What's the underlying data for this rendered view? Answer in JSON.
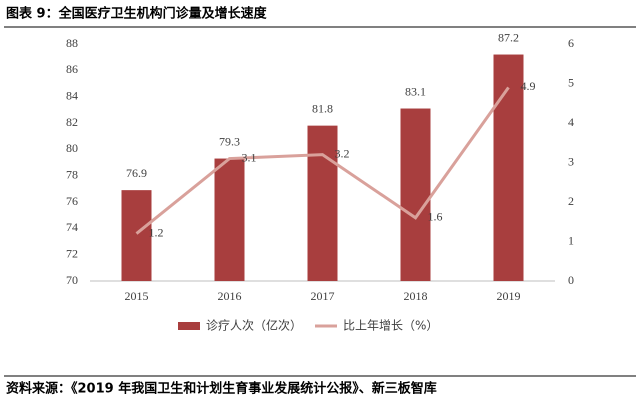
{
  "chart_data": {
    "type": "bar",
    "title": "图表 9：全国医疗卫生机构门诊量及增长速度",
    "source": "资料来源：《2019 年我国卫生和计划生育事业发展统计公报》、新三板智库",
    "categories": [
      "2015",
      "2016",
      "2017",
      "2018",
      "2019"
    ],
    "series": [
      {
        "name": "诊疗人次（亿次）",
        "type": "bar",
        "color": "#a83e3e",
        "values": [
          76.9,
          79.3,
          81.8,
          83.1,
          87.2
        ]
      },
      {
        "name": "比上年增长（%）",
        "type": "line",
        "axis": "y2",
        "color": "#d9a19b",
        "values": [
          1.2,
          3.1,
          3.2,
          1.6,
          4.9
        ]
      }
    ],
    "ylim": [
      70,
      88
    ],
    "yticks": [
      70,
      72,
      74,
      76,
      78,
      80,
      82,
      84,
      86,
      88
    ],
    "y2lim": [
      0,
      6
    ],
    "y2ticks": [
      0,
      1,
      2,
      3,
      4,
      5,
      6
    ],
    "grid": false
  }
}
